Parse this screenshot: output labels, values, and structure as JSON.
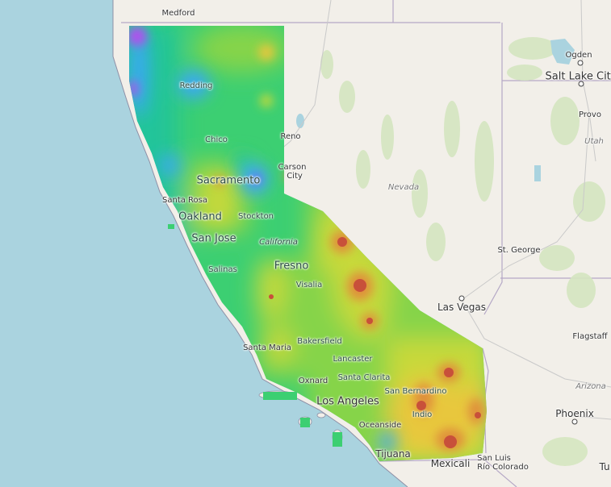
{
  "map": {
    "overlay_region": "California",
    "color_scale": [
      "#b44ef0",
      "#3aa8f5",
      "#23c49a",
      "#3ccf72",
      "#86d44a",
      "#c7d93a",
      "#e8c73c",
      "#e0903a",
      "#c8503a"
    ],
    "sea_color": "#aad3df",
    "land_color": "#f2efe9"
  },
  "labels": {
    "medford": "Medford",
    "ogden": "Ogden",
    "salt_lake_city": "Salt Lake City",
    "provo": "Provo",
    "utah": "Utah",
    "redding": "Redding",
    "chico": "Chico",
    "reno": "Reno",
    "carson_city_1": "Carson",
    "carson_city_2": "City",
    "nevada": "Nevada",
    "sacramento": "Sacramento",
    "santa_rosa": "Santa Rosa",
    "oakland": "Oakland",
    "stockton": "Stockton",
    "san_jose": "San Jose",
    "california": "California",
    "fresno": "Fresno",
    "salinas": "Salinas",
    "visalia": "Visalia",
    "las_vegas": "Las Vegas",
    "st_george": "St. George",
    "flagstaff": "Flagstaff",
    "bakersfield": "Bakersfield",
    "santa_maria": "Santa Maria",
    "lancaster": "Lancaster",
    "oxnard": "Oxnard",
    "santa_clarita": "Santa Clarita",
    "san_bernardino": "San Bernardino",
    "los_angeles": "Los Angeles",
    "arizona": "Arizona",
    "indio": "Indio",
    "phoenix": "Phoenix",
    "oceanside": "Oceanside",
    "tijuana": "Tijuana",
    "mexicali": "Mexicali",
    "san_luis": "San Luis",
    "rio_colorado": "Río Colorado",
    "tucson_partial": "Tu"
  }
}
